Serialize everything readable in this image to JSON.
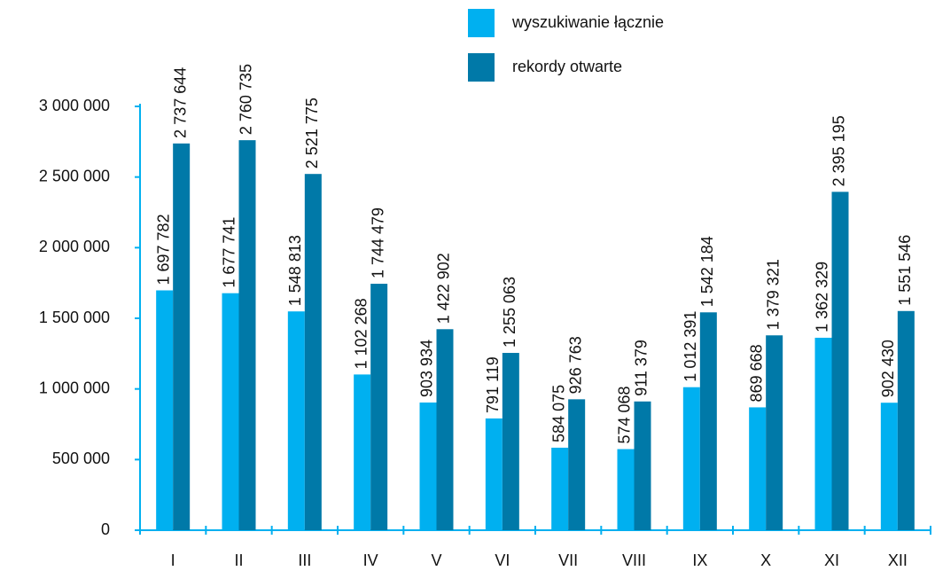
{
  "chart_data": {
    "type": "bar",
    "categories": [
      "I",
      "II",
      "III",
      "IV",
      "V",
      "VI",
      "VII",
      "VIII",
      "IX",
      "X",
      "XI",
      "XII"
    ],
    "series": [
      {
        "name": "wyszukiwanie łącznie",
        "color": "#00b0f0",
        "values": [
          1697782,
          1677741,
          1548813,
          1102268,
          903934,
          791119,
          584075,
          574068,
          1012391,
          869668,
          1362329,
          902430
        ],
        "value_labels": [
          "1 697 782",
          "1 677 741",
          "1 548 813",
          "1 102 268",
          "903 934",
          "791 119",
          "584 075",
          "574 068",
          "1 012 391",
          "869 668",
          "1 362 329",
          "902 430"
        ]
      },
      {
        "name": "rekordy otwarte",
        "color": "#0079a8",
        "values": [
          2737644,
          2760735,
          2521775,
          1744479,
          1422902,
          1255063,
          926763,
          911379,
          1542184,
          1379321,
          2395195,
          1551546
        ],
        "value_labels": [
          "2 737 644",
          "2 760 735",
          "2 521 775",
          "1 744 479",
          "1 422 902",
          "1 255 063",
          "926 763",
          "911 379",
          "1 542 184",
          "1 379 321",
          "2 395 195",
          "1 551 546"
        ]
      }
    ],
    "ylim": [
      0,
      3000000
    ],
    "yticks": [
      0,
      {
        "value": 500000,
        "label": "500 000"
      },
      {
        "value": 1000000,
        "label": "1 000 000"
      },
      {
        "value": 1500000,
        "label": "1 500 000"
      },
      {
        "value": 2000000,
        "label": "2 000 000"
      },
      {
        "value": 2500000,
        "label": "2 500 000"
      },
      {
        "value": 3000000,
        "label": "3 000 000"
      }
    ],
    "axis_color": "#00b0f0"
  }
}
